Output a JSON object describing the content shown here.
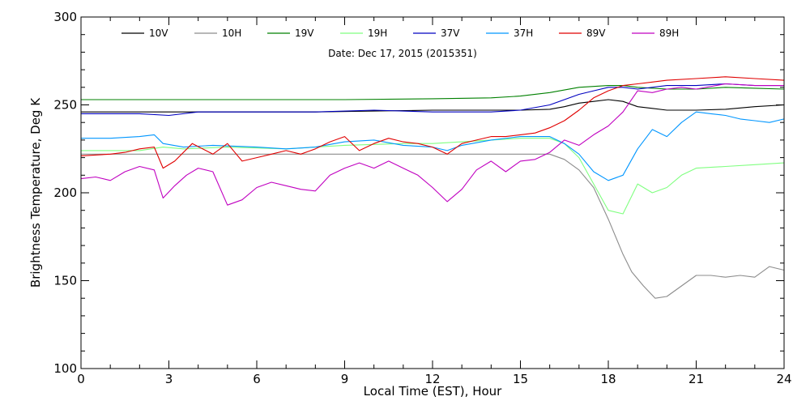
{
  "chart_data": {
    "type": "line",
    "xlabel": "Local Time (EST), Hour",
    "ylabel": "Brightness Temperature, Deg K",
    "annotation": "Date: Dec 17, 2015 (2015351)",
    "xlim": [
      0,
      24
    ],
    "ylim": [
      100,
      300
    ],
    "xticks": [
      0,
      3,
      6,
      9,
      12,
      15,
      18,
      21,
      24
    ],
    "yticks": [
      100,
      150,
      200,
      250,
      300
    ],
    "grid": false,
    "legend_position": "top",
    "series": [
      {
        "name": "10V",
        "color": "#000000",
        "x": [
          0,
          2,
          4,
          6,
          8,
          10,
          12,
          14,
          15,
          16,
          16.5,
          17,
          17.5,
          18,
          18.5,
          19,
          19.5,
          20,
          21,
          22,
          23,
          24
        ],
        "y": [
          246,
          246,
          246,
          246,
          246,
          246.5,
          247,
          247,
          247,
          247.5,
          249,
          251,
          252,
          253,
          252,
          249,
          248,
          247,
          247,
          247.5,
          249,
          250
        ]
      },
      {
        "name": "10H",
        "color": "#8c8c8c",
        "x": [
          0,
          3,
          6,
          9,
          12,
          15,
          16,
          16.5,
          17,
          17.5,
          18,
          18.5,
          18.8,
          19.2,
          19.6,
          20,
          20.5,
          21,
          21.5,
          22,
          22.5,
          23,
          23.5,
          24
        ],
        "y": [
          222,
          222,
          222,
          222,
          222,
          222,
          222,
          219,
          213,
          203,
          185,
          165,
          155,
          147,
          140,
          141,
          147,
          153,
          153,
          152,
          153,
          152,
          158,
          156
        ]
      },
      {
        "name": "19V",
        "color": "#008000",
        "x": [
          0,
          3,
          6,
          9,
          12,
          14,
          15,
          16,
          17,
          18,
          18.5,
          19,
          20,
          21,
          22,
          23,
          24
        ],
        "y": [
          253,
          253,
          253,
          253,
          253.5,
          254,
          255,
          257,
          260,
          261,
          261,
          260,
          259,
          259,
          260,
          259.5,
          259
        ]
      },
      {
        "name": "19H",
        "color": "#80ff80",
        "x": [
          0,
          2,
          2.8,
          3.5,
          5,
          7,
          9,
          11,
          12,
          13,
          14,
          15,
          16,
          16.5,
          17,
          17.5,
          18,
          18.5,
          19,
          19.5,
          20,
          20.5,
          21,
          22,
          23,
          24
        ],
        "y": [
          224,
          224,
          226,
          225,
          226,
          225,
          227,
          228,
          228,
          229,
          230,
          231,
          231,
          228,
          220,
          205,
          190,
          188,
          205,
          200,
          203,
          210,
          214,
          215,
          216,
          217
        ]
      },
      {
        "name": "37V",
        "color": "#0000c0",
        "x": [
          0,
          2,
          3,
          4,
          6,
          8,
          10,
          12,
          14,
          15,
          16,
          17,
          17.5,
          18,
          18.5,
          19,
          20,
          21,
          22,
          23,
          24
        ],
        "y": [
          245,
          245,
          244,
          246,
          246,
          246,
          247,
          246,
          246,
          247,
          250,
          256,
          258,
          260,
          260,
          259,
          261,
          261,
          262,
          261,
          261
        ]
      },
      {
        "name": "37H",
        "color": "#0096ff",
        "x": [
          0,
          1,
          2,
          2.5,
          2.8,
          3.5,
          4.5,
          6,
          7,
          8,
          9,
          10,
          11,
          12,
          12.5,
          13,
          14,
          15,
          16,
          16.5,
          17,
          17.5,
          18,
          18.5,
          19,
          19.5,
          20,
          20.5,
          21,
          21.5,
          22,
          22.5,
          23,
          23.5,
          24
        ],
        "y": [
          231,
          231,
          232,
          233,
          228,
          226,
          227,
          226,
          225,
          226,
          229,
          230,
          227,
          226,
          224,
          227,
          230,
          232,
          232,
          228,
          222,
          212,
          207,
          210,
          225,
          236,
          232,
          240,
          246,
          245,
          244,
          242,
          241,
          240,
          242
        ]
      },
      {
        "name": "89V",
        "color": "#e00000",
        "x": [
          0,
          1,
          1.5,
          2,
          2.5,
          2.8,
          3.2,
          3.8,
          4.5,
          5,
          5.5,
          6,
          6.5,
          7,
          7.5,
          8,
          8.5,
          9,
          9.5,
          10,
          10.5,
          11,
          11.5,
          12,
          12.5,
          13,
          13.5,
          14,
          14.5,
          15,
          15.5,
          16,
          16.5,
          17,
          17.5,
          18,
          18.5,
          19,
          19.5,
          20,
          21,
          22,
          23,
          24
        ],
        "y": [
          221,
          222,
          223,
          225,
          226,
          214,
          218,
          228,
          222,
          228,
          218,
          220,
          222,
          224,
          222,
          225,
          229,
          232,
          224,
          228,
          231,
          229,
          228,
          226,
          222,
          228,
          230,
          232,
          232,
          233,
          234,
          237,
          241,
          247,
          254,
          258,
          261,
          262,
          263,
          264,
          265,
          266,
          265,
          264
        ]
      },
      {
        "name": "89H",
        "color": "#c000c0",
        "x": [
          0,
          0.5,
          1,
          1.5,
          2,
          2.5,
          2.8,
          3.2,
          3.6,
          4,
          4.5,
          5,
          5.5,
          6,
          6.5,
          7,
          7.5,
          8,
          8.5,
          9,
          9.5,
          10,
          10.5,
          11,
          11.5,
          12,
          12.5,
          13,
          13.5,
          14,
          14.5,
          15,
          15.5,
          16,
          16.5,
          17,
          17.5,
          18,
          18.5,
          19,
          19.5,
          20,
          20.5,
          21,
          22,
          23,
          24
        ],
        "y": [
          208,
          209,
          207,
          212,
          215,
          213,
          197,
          204,
          210,
          214,
          212,
          193,
          196,
          203,
          206,
          204,
          202,
          201,
          210,
          214,
          217,
          214,
          218,
          214,
          210,
          203,
          195,
          202,
          213,
          218,
          212,
          218,
          219,
          223,
          230,
          227,
          233,
          238,
          246,
          258,
          257,
          259,
          260,
          259,
          262,
          261,
          261
        ]
      }
    ]
  }
}
